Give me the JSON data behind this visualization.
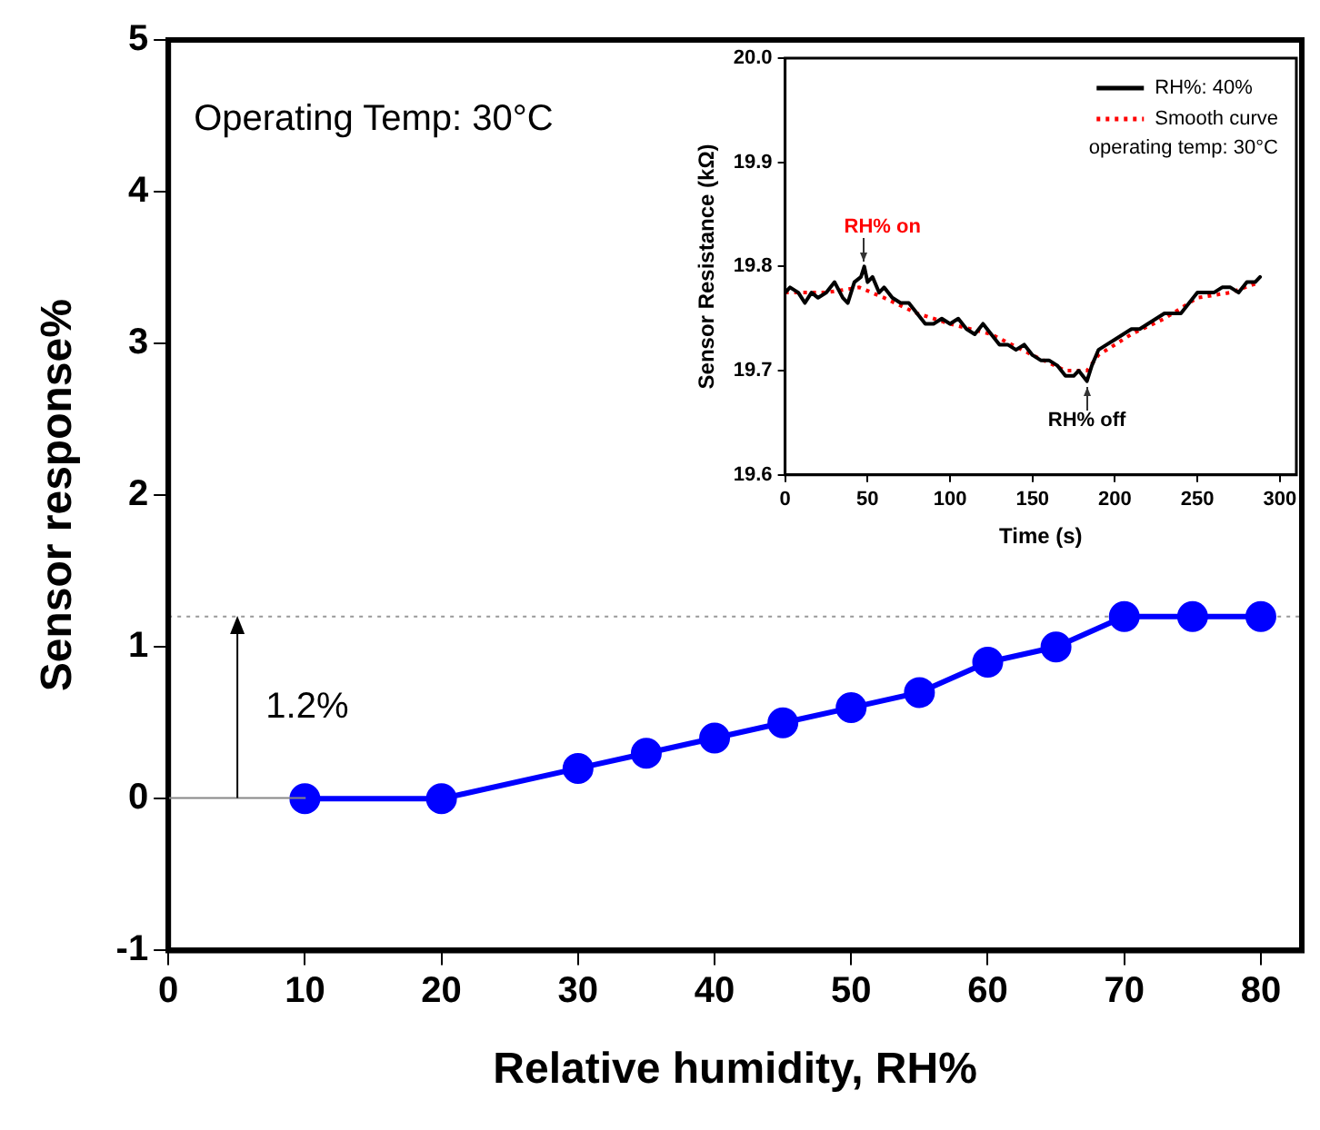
{
  "chart_data": [
    {
      "type": "line",
      "xlabel": "Relative humidity, RH%",
      "ylabel": "Sensor response%",
      "x": [
        10,
        20,
        30,
        35,
        40,
        45,
        50,
        55,
        60,
        65,
        70,
        75,
        80
      ],
      "series": [
        {
          "color": "#0000ff",
          "values": [
            0,
            0,
            0.2,
            0.3,
            0.4,
            0.5,
            0.6,
            0.7,
            0.9,
            1.0,
            1.2,
            1.2,
            1.2
          ]
        }
      ],
      "xlim": [
        0,
        83
      ],
      "xticks": [
        0,
        10,
        20,
        30,
        40,
        50,
        60,
        70,
        80
      ],
      "ylim": [
        -1,
        5
      ],
      "yticks": [
        -1,
        0,
        1,
        2,
        3,
        4,
        5
      ],
      "ref_lines": [
        {
          "axis": "y",
          "value": 1.2,
          "color": "#999999",
          "line_style": "dotted"
        }
      ],
      "annotations": [
        "Operating Temp: 30°C",
        "1.2%"
      ],
      "marker": "circle",
      "line_style": "solid",
      "grid": false,
      "legend": false
    },
    {
      "type": "line",
      "xlabel": "Time (s)",
      "ylabel": "Sensor Resistance (kΩ)",
      "series": [
        {
          "name": "RH%: 40%",
          "color": "#000000",
          "line_style": "solid",
          "x": [
            0,
            3,
            8,
            12,
            16,
            20,
            25,
            30,
            35,
            38,
            42,
            46,
            48,
            50,
            53,
            57,
            60,
            65,
            70,
            75,
            80,
            85,
            90,
            95,
            100,
            105,
            110,
            115,
            120,
            125,
            130,
            135,
            140,
            145,
            150,
            155,
            160,
            165,
            170,
            175,
            178,
            183,
            186,
            190,
            195,
            200,
            205,
            210,
            215,
            220,
            225,
            230,
            235,
            240,
            245,
            250,
            255,
            260,
            265,
            270,
            275,
            280,
            285,
            288
          ],
          "values": [
            19.775,
            19.78,
            19.775,
            19.765,
            19.775,
            19.77,
            19.775,
            19.785,
            19.77,
            19.765,
            19.785,
            19.79,
            19.8,
            19.785,
            19.79,
            19.775,
            19.78,
            19.77,
            19.765,
            19.765,
            19.755,
            19.745,
            19.745,
            19.75,
            19.745,
            19.75,
            19.74,
            19.735,
            19.745,
            19.735,
            19.725,
            19.725,
            19.72,
            19.725,
            19.715,
            19.71,
            19.71,
            19.705,
            19.695,
            19.695,
            19.7,
            19.69,
            19.705,
            19.72,
            19.725,
            19.73,
            19.735,
            19.74,
            19.74,
            19.745,
            19.75,
            19.755,
            19.755,
            19.755,
            19.765,
            19.775,
            19.775,
            19.775,
            19.78,
            19.78,
            19.775,
            19.785,
            19.785,
            19.79
          ]
        },
        {
          "name": "Smooth curve",
          "color": "#ff0000",
          "line_style": "dotted",
          "x": [
            0,
            25,
            45,
            60,
            80,
            100,
            125,
            150,
            170,
            183,
            190,
            210,
            230,
            250,
            270,
            288
          ],
          "values": [
            19.775,
            19.775,
            19.78,
            19.77,
            19.755,
            19.745,
            19.735,
            19.715,
            19.7,
            19.7,
            19.715,
            19.735,
            19.75,
            19.77,
            19.775,
            19.785
          ]
        }
      ],
      "xlim": [
        0,
        310
      ],
      "xticks": [
        0,
        50,
        100,
        150,
        200,
        250,
        300
      ],
      "ylim": [
        19.6,
        20.0
      ],
      "yticks": [
        19.6,
        19.7,
        19.8,
        19.9,
        {
          "value": 20.0,
          "label": "20.0"
        }
      ],
      "annotations": [
        "operating temp: 30°C",
        {
          "text": "RH% on",
          "x": 48,
          "y": 19.8
        },
        {
          "text": "RH% off",
          "x": 183,
          "y": 19.69
        }
      ],
      "marker": "none",
      "grid": false,
      "legend": "top right"
    }
  ]
}
